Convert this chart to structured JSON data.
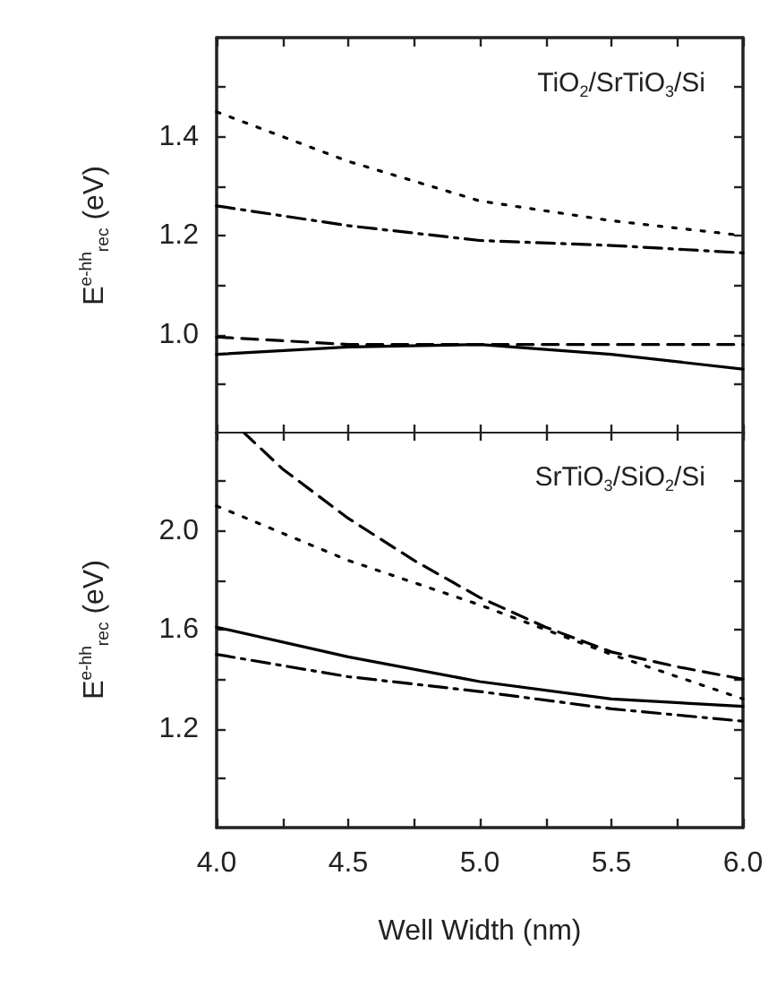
{
  "chart_data": [
    {
      "type": "line",
      "ylabel": "E$^{e-hh}$$_{rec}$ (eV)",
      "annotations": [
        "TiO$_{2}$/SrTiO$_{3}$/Si"
      ],
      "xlim": [
        4,
        6
      ],
      "xticks": [
        4,
        4.25,
        4.5,
        4.75,
        5,
        5.25,
        5.5,
        5.75,
        6
      ],
      "ylim": [
        0.8,
        1.6
      ],
      "yticks": [
        {
          "value": 0.9,
          "label": null
        },
        {
          "value": 1,
          "label": "1.0"
        },
        {
          "value": 1.1,
          "label": null
        },
        1.2,
        {
          "value": 1.3,
          "label": null
        },
        1.4,
        {
          "value": 1.5,
          "label": null
        }
      ],
      "tick_labels": "y",
      "grid": false,
      "marker": "none",
      "series": [
        {
          "color": "#000000",
          "line_style": "dotted",
          "x": [
            4,
            4.5,
            5,
            5.5,
            6
          ],
          "values": [
            1.45,
            1.35,
            1.27,
            1.23,
            1.2
          ]
        },
        {
          "color": "#000000",
          "line_style": "dashdot",
          "x": [
            4,
            4.5,
            5,
            5.5,
            6
          ],
          "values": [
            1.26,
            1.22,
            1.19,
            1.18,
            1.165
          ]
        },
        {
          "color": "#000000",
          "line_style": "dashed",
          "x": [
            4,
            4.5,
            5,
            5.5,
            6
          ],
          "values": [
            0.995,
            0.98,
            0.98,
            0.98,
            0.98
          ]
        },
        {
          "color": "#000000",
          "line_style": "solid",
          "x": [
            4,
            4.5,
            5,
            5.5,
            6
          ],
          "values": [
            0.96,
            0.975,
            0.98,
            0.96,
            0.93
          ]
        }
      ]
    },
    {
      "type": "line",
      "ylabel": "E$^{e-hh}$$_{rec}$ (eV)",
      "xlabel": "Well Width (nm)",
      "annotations": [
        "SrTiO$_{3}$/SiO$_{2}$/Si"
      ],
      "xlim": [
        4,
        6
      ],
      "xticks": [
        {
          "value": 4,
          "label": "4.0"
        },
        {
          "value": 4.25,
          "label": null
        },
        4.5,
        {
          "value": 4.75,
          "label": null
        },
        {
          "value": 5,
          "label": "5.0"
        },
        {
          "value": 5.25,
          "label": null
        },
        5.5,
        {
          "value": 5.75,
          "label": null
        },
        {
          "value": 6,
          "label": "6.0"
        }
      ],
      "ylim": [
        0.8,
        2.4
      ],
      "yticks": [
        {
          "value": 1,
          "label": null
        },
        1.2,
        {
          "value": 1.4,
          "label": null
        },
        1.6,
        {
          "value": 1.8,
          "label": null
        },
        {
          "value": 2,
          "label": "2.0"
        },
        {
          "value": 2.2,
          "label": null
        }
      ],
      "grid": false,
      "marker": "none",
      "series": [
        {
          "color": "#000000",
          "line_style": "dashed",
          "x": [
            4.1,
            4.25,
            4.5,
            4.75,
            5,
            5.25,
            5.5,
            5.75,
            6
          ],
          "values": [
            2.4,
            2.25,
            2.05,
            1.88,
            1.73,
            1.61,
            1.51,
            1.45,
            1.4
          ]
        },
        {
          "color": "#000000",
          "line_style": "dotted",
          "x": [
            4,
            4.5,
            5,
            5.5,
            6
          ],
          "values": [
            2.1,
            1.88,
            1.7,
            1.5,
            1.32
          ]
        },
        {
          "color": "#000000",
          "line_style": "solid",
          "x": [
            4,
            4.5,
            5,
            5.5,
            6
          ],
          "values": [
            1.61,
            1.49,
            1.39,
            1.32,
            1.29
          ]
        },
        {
          "color": "#000000",
          "line_style": "dashdot",
          "x": [
            4,
            4.5,
            5,
            5.5,
            6
          ],
          "values": [
            1.5,
            1.41,
            1.35,
            1.28,
            1.23
          ]
        }
      ]
    }
  ]
}
